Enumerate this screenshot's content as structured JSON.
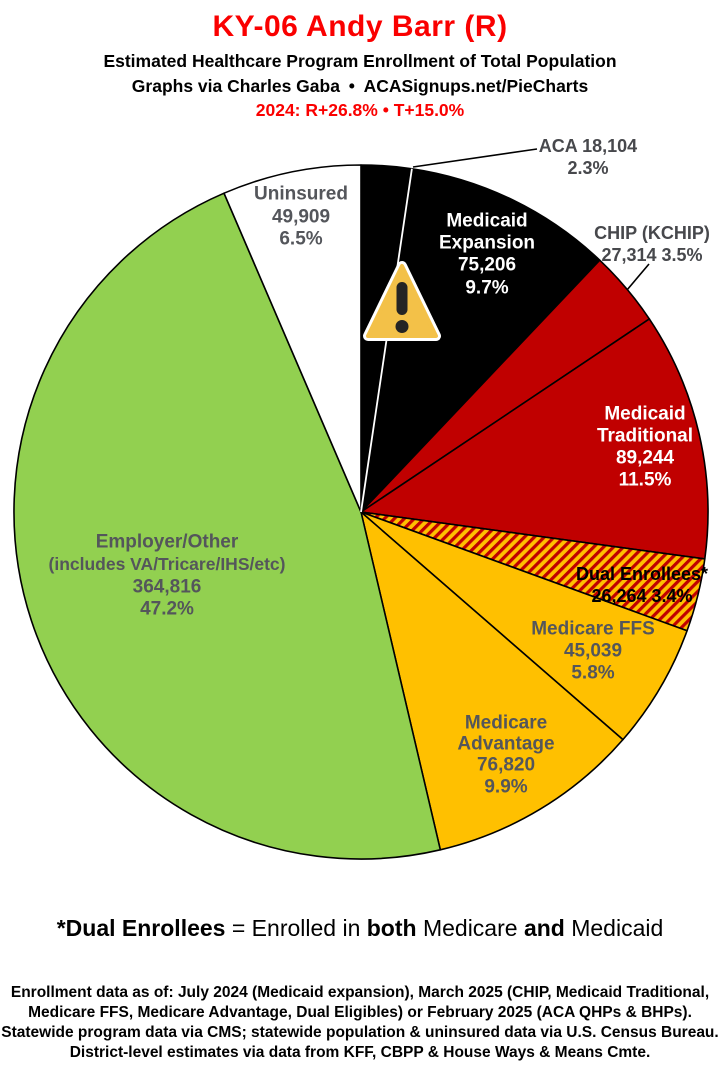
{
  "header": {
    "title": "KY-06 Andy Barr (R)",
    "subtitle": "Estimated Healthcare Program Enrollment of Total Population",
    "credit": "Graphs via Charles Gaba • ACASignups.net/PieCharts",
    "partisan_lean": "2024: R+26.8% • T+15.0%"
  },
  "chart_data": {
    "type": "pie",
    "title": "Estimated Healthcare Program Enrollment of Total Population",
    "direction": "clockwise",
    "start_angle_deg": 0,
    "legend_position": "labels-on-slices",
    "hatch_colors": [
      "#FFC000",
      "#C00000"
    ],
    "slices": [
      {
        "id": "aca",
        "name": "ACA",
        "value": 18104,
        "value_label": "18,104",
        "pct_label": "2.3%",
        "color": "#000000",
        "label_color": "#47484c",
        "label_lines": [
          "ACA 18,104",
          "2.3%"
        ]
      },
      {
        "id": "medicaid_expansion",
        "name": "Medicaid Expansion",
        "value": 75206,
        "value_label": "75,206",
        "pct_label": "9.7%",
        "color": "#000000",
        "label_color": "#ffffff",
        "label_lines": [
          "Medicaid",
          "Expansion",
          "75,206",
          "9.7%"
        ]
      },
      {
        "id": "chip",
        "name": "CHIP (KCHIP)",
        "value": 27314,
        "value_label": "27,314",
        "pct_label": "3.5%",
        "color": "#C00000",
        "label_color": "#47484c",
        "label_lines": [
          "CHIP (KCHIP)",
          "27,314 3.5%"
        ]
      },
      {
        "id": "medicaid_traditional",
        "name": "Medicaid Traditional",
        "value": 89244,
        "value_label": "89,244",
        "pct_label": "11.5%",
        "color": "#C00000",
        "label_color": "#ffffff",
        "label_lines": [
          "Medicaid",
          "Traditional",
          "89,244",
          "11.5%"
        ]
      },
      {
        "id": "dual_enrollees",
        "name": "Dual Enrollees*",
        "value": 26264,
        "value_label": "26,264",
        "pct_label": "3.4%",
        "color": "hatch",
        "label_color": "#000000",
        "label_lines": [
          "Dual Enrollees*",
          "26,264 3.4%"
        ]
      },
      {
        "id": "medicare_ffs",
        "name": "Medicare FFS",
        "value": 45039,
        "value_label": "45,039",
        "pct_label": "5.8%",
        "color": "#FFC000",
        "label_color": "#54565b",
        "label_lines": [
          "Medicare FFS",
          "45,039",
          "5.8%"
        ]
      },
      {
        "id": "medicare_advantage",
        "name": "Medicare Advantage",
        "value": 76820,
        "value_label": "76,820",
        "pct_label": "9.9%",
        "color": "#FFC000",
        "label_color": "#54565b",
        "label_lines": [
          "Medicare",
          "Advantage",
          "76,820",
          "9.9%"
        ]
      },
      {
        "id": "employer_other",
        "name": "Employer/Other (includes VA/Tricare/IHS/etc)",
        "value": 364816,
        "value_label": "364,816",
        "pct_label": "47.2%",
        "color": "#92D050",
        "label_color": "#54565b",
        "label_lines": [
          "Employer/Other",
          "(includes VA/Tricare/IHS/etc)",
          "364,816",
          "47.2%"
        ]
      },
      {
        "id": "uninsured",
        "name": "Uninsured",
        "value": 49909,
        "value_label": "49,909",
        "pct_label": "6.5%",
        "color": "#FFFFFF",
        "label_color": "#54565b",
        "label_lines": [
          "Uninsured",
          "49,909",
          "6.5%"
        ]
      }
    ]
  },
  "icons": {
    "warning": "warning-triangle"
  },
  "colors": {
    "title_red": "#fa0000",
    "pie_black": "#000000",
    "pie_red": "#C00000",
    "pie_gold": "#FFC000",
    "pie_green": "#92D050",
    "warning_fill": "#f3c148"
  },
  "footnote": {
    "bold1": "*Dual Enrollees",
    "normal1": " = Enrolled in ",
    "bold2": "both",
    "normal2": " Medicare ",
    "bold3": "and",
    "normal3": " Medicaid"
  },
  "notes": {
    "lines": [
      "Enrollment data as of: July 2024 (Medicaid expansion), March 2025 (CHIP, Medicaid Traditional,",
      "Medicare FFS, Medicare Advantage, Dual Eligibles) or February 2025 (ACA QHPs & BHPs).",
      "Statewide program data via CMS; statewide population & uninsured data via U.S. Census Bureau.",
      "District-level estimates via data from KFF, CBPP & House Ways & Means Cmte."
    ]
  }
}
